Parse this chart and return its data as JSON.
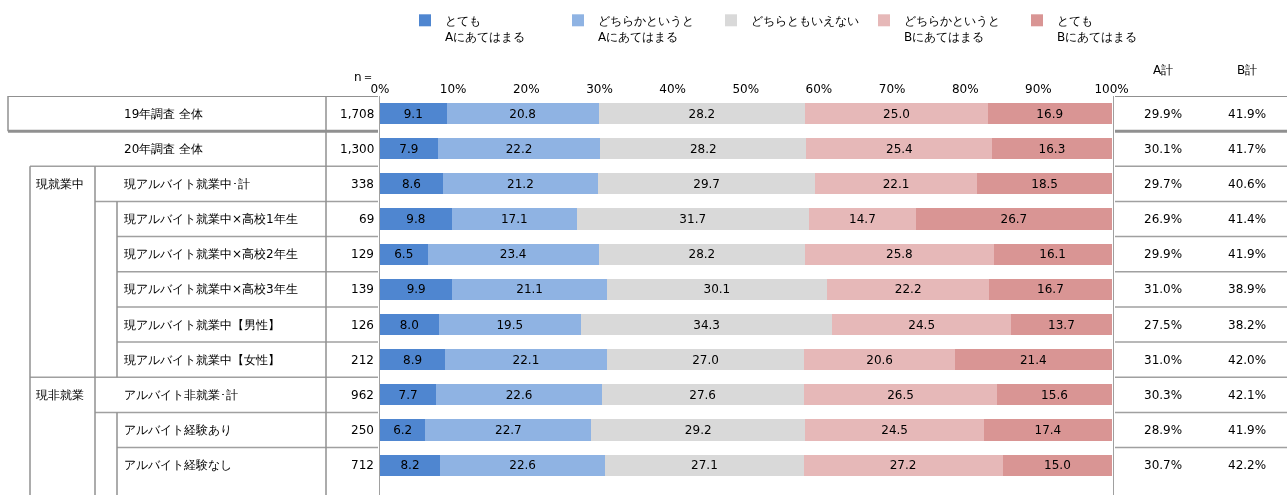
{
  "chart_data": {
    "type": "bar",
    "orientation": "horizontal",
    "stacked": true,
    "grid": false,
    "legend": "top",
    "categories": [
      "19年調査 全体",
      "20年調査 全体",
      "現アルバイト就業中･計",
      "現アルバイト就業中×高校1年生",
      "現アルバイト就業中×高校2年生",
      "現アルバイト就業中×高校3年生",
      "現アルバイト就業中【男性】",
      "現アルバイト就業中【女性】",
      "アルバイト非就業･計",
      "アルバイト経験あり",
      "アルバイト経験なし"
    ],
    "xlim": [
      0,
      100.2
    ],
    "xticks": [
      {
        "value": 0,
        "label": "0%"
      },
      {
        "value": 10,
        "label": "10%"
      },
      {
        "value": 20,
        "label": "20%"
      },
      {
        "value": 30,
        "label": "30%"
      },
      {
        "value": 40,
        "label": "40%"
      },
      {
        "value": 50,
        "label": "50%"
      },
      {
        "value": 60,
        "label": "60%"
      },
      {
        "value": 70,
        "label": "70%"
      },
      {
        "value": 80,
        "label": "80%"
      },
      {
        "value": 90,
        "label": "90%"
      },
      {
        "value": 100,
        "label": "100%"
      }
    ],
    "series": [
      {
        "name": "とても\nAにあてはまる",
        "color": "#4f86d0",
        "values": [
          9.1,
          7.9,
          8.6,
          9.8,
          6.5,
          9.9,
          8.0,
          8.9,
          7.7,
          6.2,
          8.2
        ],
        "value_labels": [
          "9.1",
          "7.9",
          "8.6",
          "9.8",
          "6.5",
          "9.9",
          "8.0",
          "8.9",
          "7.7",
          "6.2",
          "8.2"
        ]
      },
      {
        "name": "どちらかというと\nAにあてはまる",
        "color": "#8fb3e3",
        "values": [
          20.8,
          22.2,
          21.2,
          17.1,
          23.4,
          21.1,
          19.5,
          22.1,
          22.6,
          22.7,
          22.6
        ],
        "value_labels": [
          "20.8",
          "22.2",
          "21.2",
          "17.1",
          "23.4",
          "21.1",
          "19.5",
          "22.1",
          "22.6",
          "22.7",
          "22.6"
        ]
      },
      {
        "name": "どちらともいえない",
        "color": "#d9d9d9",
        "values": [
          28.2,
          28.2,
          29.7,
          31.7,
          28.2,
          30.1,
          34.3,
          27.0,
          27.6,
          29.2,
          27.1
        ],
        "value_labels": [
          "28.2",
          "28.2",
          "29.7",
          "31.7",
          "28.2",
          "30.1",
          "34.3",
          "27.0",
          "27.6",
          "29.2",
          "27.1"
        ]
      },
      {
        "name": "どちらかというと\nBにあてはまる",
        "color": "#e6b8b8",
        "values": [
          25.0,
          25.4,
          22.1,
          14.7,
          25.8,
          22.2,
          24.5,
          20.6,
          26.5,
          24.5,
          27.2
        ],
        "value_labels": [
          "25.0",
          "25.4",
          "22.1",
          "14.7",
          "25.8",
          "22.2",
          "24.5",
          "20.6",
          "26.5",
          "24.5",
          "27.2"
        ]
      },
      {
        "name": "とても\nBにあてはまる",
        "color": "#d99594",
        "values": [
          16.9,
          16.3,
          18.5,
          26.7,
          16.1,
          16.7,
          13.7,
          21.4,
          15.6,
          17.4,
          15.0
        ],
        "value_labels": [
          "16.9",
          "16.3",
          "18.5",
          "26.7",
          "16.1",
          "16.7",
          "13.7",
          "21.4",
          "15.6",
          "17.4",
          "15.0"
        ]
      }
    ],
    "annotations": [
      "n＝",
      "A計",
      "B計",
      "現就業中",
      "現非就業",
      "1,708",
      "29.9%",
      "41.9%",
      "1,300",
      "30.1%",
      "41.7%",
      "338",
      "29.7%",
      "40.6%",
      "69",
      "26.9%",
      "41.4%",
      "129",
      "29.9%",
      "41.9%",
      "139",
      "31.0%",
      "38.9%",
      "126",
      "27.5%",
      "38.2%",
      "212",
      "31.0%",
      "42.0%",
      "962",
      "30.3%",
      "42.1%",
      "250",
      "28.9%",
      "41.9%",
      "712",
      "30.7%",
      "42.2%"
    ]
  }
}
